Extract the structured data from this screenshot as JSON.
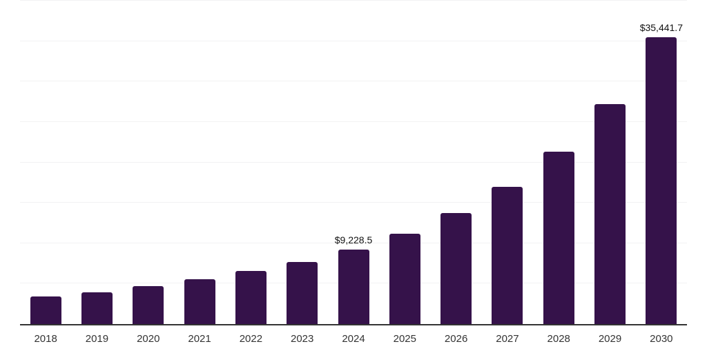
{
  "chart_data": {
    "type": "bar",
    "title": "",
    "xlabel": "",
    "ylabel": "",
    "categories": [
      "2018",
      "2019",
      "2020",
      "2021",
      "2022",
      "2023",
      "2024",
      "2025",
      "2026",
      "2027",
      "2028",
      "2029",
      "2030"
    ],
    "values": [
      3400,
      3950,
      4650,
      5550,
      6550,
      7700,
      9228.5,
      11200,
      13700,
      16950,
      21350,
      27250,
      35441.7
    ],
    "point_labels": [
      "",
      "",
      "",
      "",
      "",
      "",
      "$9,228.5",
      "",
      "",
      "",
      "",
      "",
      "$35,441.7"
    ],
    "ylim": [
      0,
      40000
    ],
    "grid_step": 5000,
    "grid": "on",
    "legend": "none",
    "colors": {
      "bar": "#35124a",
      "axis": "#333333",
      "gridline": "#f2f2f3",
      "value_label": "#111111",
      "tick_label": "#333333",
      "background": "#ffffff"
    }
  }
}
